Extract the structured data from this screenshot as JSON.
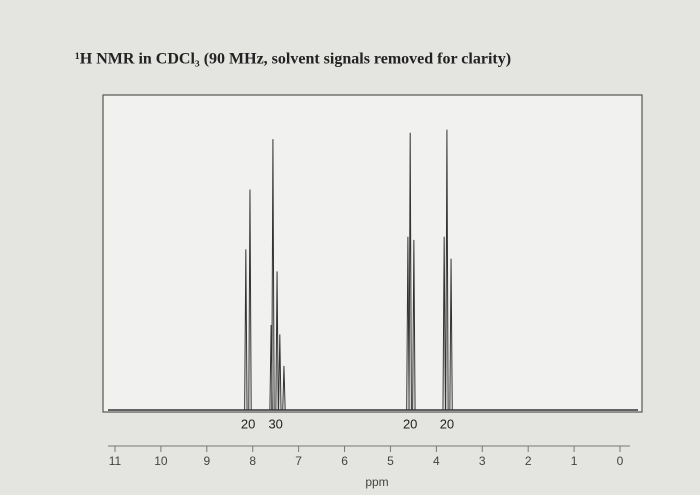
{
  "chart_data": {
    "type": "spectrum",
    "title": "¹H NMR in CDCl₃ (90 MHz, solvent signals removed for clarity)",
    "x_label": "ppm",
    "x": [
      8.15,
      8.06,
      7.6,
      7.56,
      7.47,
      7.41,
      7.32,
      4.62,
      4.57,
      4.49,
      3.83,
      3.77,
      3.68
    ],
    "values": [
      51,
      70,
      27,
      86,
      44,
      24,
      14,
      55,
      88,
      54,
      55,
      89,
      48
    ],
    "integrals": {
      "x": [
        8.1,
        7.5,
        4.57,
        3.77
      ],
      "values": [
        20,
        30,
        20,
        20
      ]
    },
    "xlim": [
      11,
      0
    ],
    "xticks": [
      11,
      10,
      9,
      8,
      7,
      6,
      5,
      4,
      3,
      2,
      1,
      0
    ],
    "ylim": [
      0,
      100
    ],
    "color": "#333333"
  }
}
